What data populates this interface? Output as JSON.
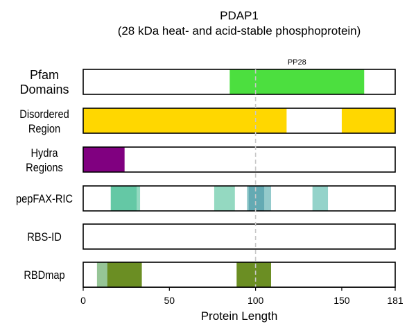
{
  "chart_data": {
    "type": "bar",
    "title": "PDAP1",
    "subtitle": "(28 kDa heat- and acid-stable phosphoprotein)",
    "xlabel": "Protein Length",
    "xlim": [
      0,
      181
    ],
    "xticks": [
      0,
      50,
      100,
      150,
      181
    ],
    "reference_line_x": 100,
    "grid": false,
    "tracks": [
      {
        "label_lines": [
          "Pfam",
          "Domains"
        ],
        "segments": [
          {
            "start": 85,
            "end": 163,
            "color": "#4cdf3f",
            "opacity": 1,
            "label": "PP28"
          }
        ]
      },
      {
        "label_lines": [
          "Disordered",
          "Region"
        ],
        "segments": [
          {
            "start": 0,
            "end": 118,
            "color": "#ffd700",
            "opacity": 1
          },
          {
            "start": 150,
            "end": 181,
            "color": "#ffd700",
            "opacity": 1
          }
        ]
      },
      {
        "label_lines": [
          "Hydra",
          "Regions"
        ],
        "segments": [
          {
            "start": 0,
            "end": 24,
            "color": "#800080",
            "opacity": 1
          }
        ]
      },
      {
        "label_lines": [
          "pepFAX-RIC"
        ],
        "segments": [
          {
            "start": 16,
            "end": 33,
            "color": "#3cb98e",
            "opacity": 0.55
          },
          {
            "start": 16,
            "end": 31,
            "color": "#3cb98e",
            "opacity": 0.55
          },
          {
            "start": 76,
            "end": 88,
            "color": "#3cb98e",
            "opacity": 0.55
          },
          {
            "start": 95,
            "end": 109,
            "color": "#3c9ea0",
            "opacity": 0.55
          },
          {
            "start": 96,
            "end": 105,
            "color": "#3c8fa0",
            "opacity": 0.55
          },
          {
            "start": 133,
            "end": 142,
            "color": "#3cae9e",
            "opacity": 0.55
          }
        ]
      },
      {
        "label_lines": [
          "RBS-ID"
        ],
        "segments": []
      },
      {
        "label_lines": [
          "RBDmap"
        ],
        "segments": [
          {
            "start": 8,
            "end": 34,
            "color": "#2e8b2e",
            "opacity": 0.5
          },
          {
            "start": 14,
            "end": 34,
            "color": "#6b8e23",
            "opacity": 1
          },
          {
            "start": 89,
            "end": 109,
            "color": "#6b8e23",
            "opacity": 1
          }
        ]
      }
    ]
  }
}
